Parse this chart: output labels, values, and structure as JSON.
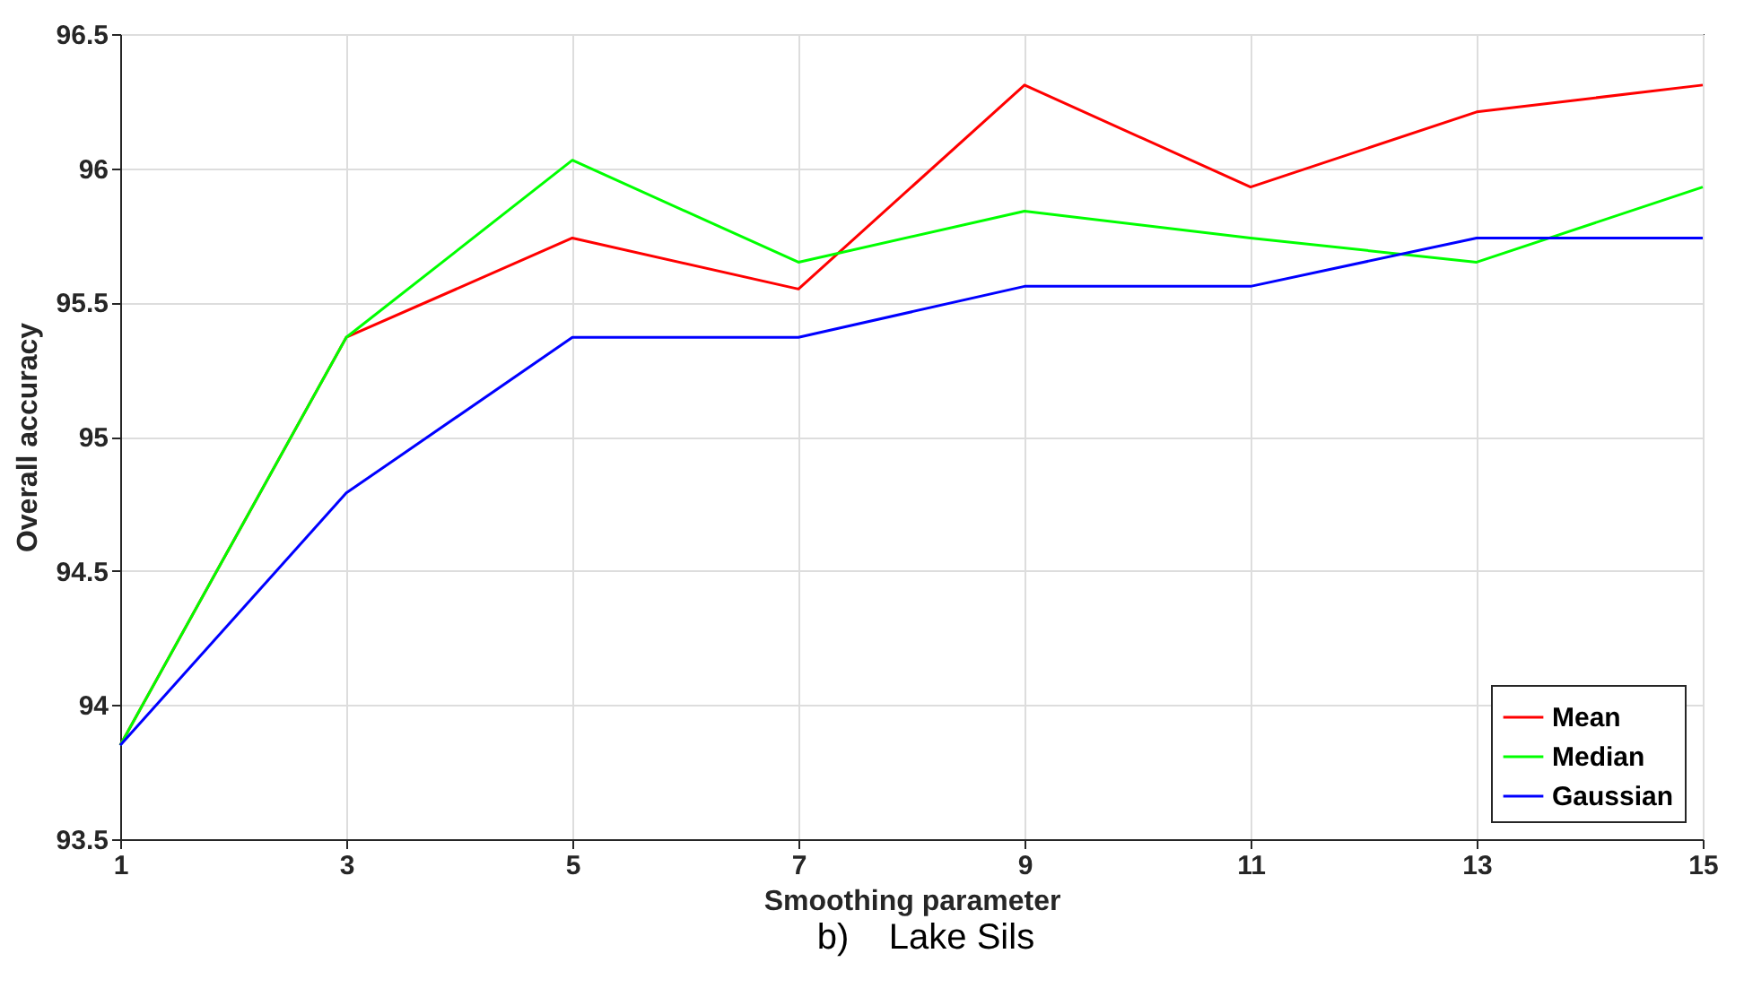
{
  "chart_data": {
    "type": "line",
    "xlabel": "Smoothing parameter",
    "ylabel": "Overall accuracy",
    "x": [
      1,
      3,
      5,
      7,
      9,
      11,
      13,
      15
    ],
    "series": [
      {
        "name": "Mean",
        "color": "#ff0000",
        "values": [
          93.85,
          95.37,
          95.74,
          95.55,
          96.31,
          95.93,
          96.21,
          96.31
        ]
      },
      {
        "name": "Median",
        "color": "#00ff00",
        "values": [
          93.85,
          95.37,
          96.03,
          95.65,
          95.84,
          95.74,
          95.65,
          95.93
        ]
      },
      {
        "name": "Gaussian",
        "color": "#0000ff",
        "values": [
          93.85,
          94.79,
          95.37,
          95.37,
          95.56,
          95.56,
          95.74,
          95.74
        ]
      }
    ],
    "xlim": [
      1,
      15
    ],
    "xticks": [
      1,
      3,
      5,
      7,
      9,
      11,
      13,
      15
    ],
    "ylim": [
      93.5,
      96.5
    ],
    "yticks": [
      93.5,
      94,
      94.5,
      95,
      95.5,
      96,
      96.5
    ],
    "grid": true,
    "legend": "bottom right",
    "marker": "none",
    "line_style": "solid",
    "annotations": [
      "b)    Lake Sils"
    ]
  }
}
